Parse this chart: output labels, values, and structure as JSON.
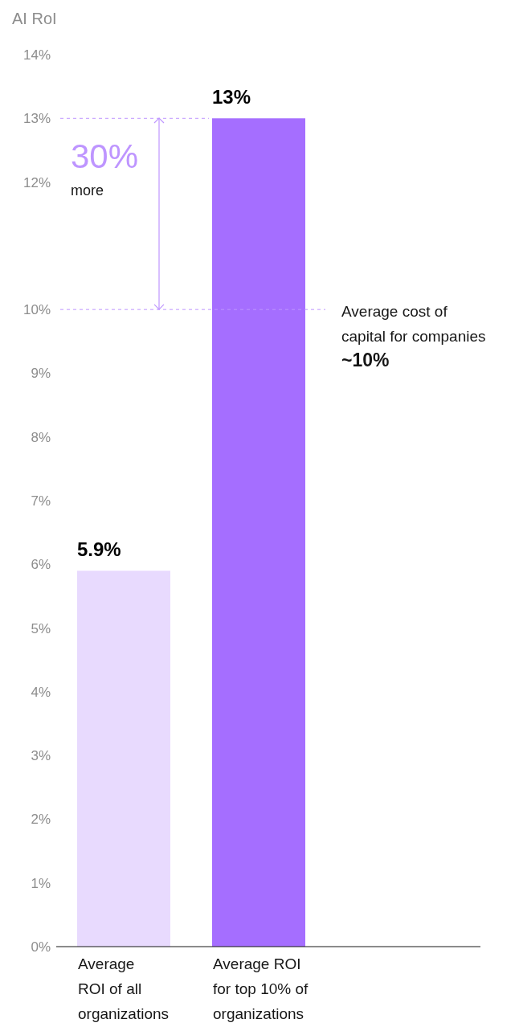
{
  "chart_data": {
    "type": "bar",
    "ylabel": "AI RoI",
    "categories": [
      "Average\nROI of all\norganizations",
      "Average ROI\nfor top 10% of\norganizations"
    ],
    "values": [
      5.9,
      13
    ],
    "colors": [
      "#e8dafe",
      "#a56eff"
    ],
    "value_labels": [
      "5.9%",
      "13%"
    ],
    "ylim": [
      0,
      14
    ],
    "yticks": [
      {
        "value": 0,
        "label": "0%"
      },
      {
        "value": 1,
        "label": "1%"
      },
      {
        "value": 2,
        "label": "2%"
      },
      {
        "value": 3,
        "label": "3%"
      },
      {
        "value": 4,
        "label": "4%"
      },
      {
        "value": 5,
        "label": "5%"
      },
      {
        "value": 6,
        "label": "6%"
      },
      {
        "value": 7,
        "label": "7%"
      },
      {
        "value": 8,
        "label": "8%"
      },
      {
        "value": 9,
        "label": "9%"
      },
      {
        "value": 10,
        "label": "10%"
      },
      {
        "value": 12,
        "label": "12%"
      },
      {
        "value": 13,
        "label": "13%"
      },
      {
        "value": 14,
        "label": "14%"
      }
    ],
    "ref_lines": [
      {
        "axis": "y",
        "value": 13,
        "color": "#be95ff",
        "line_style": "dashed"
      },
      {
        "axis": "y",
        "value": 10,
        "label": "Average cost of\ncapital for companies\n~10%",
        "color": "#be95ff",
        "line_style": "dashed"
      }
    ],
    "annotations": [
      "30%",
      "more"
    ]
  }
}
